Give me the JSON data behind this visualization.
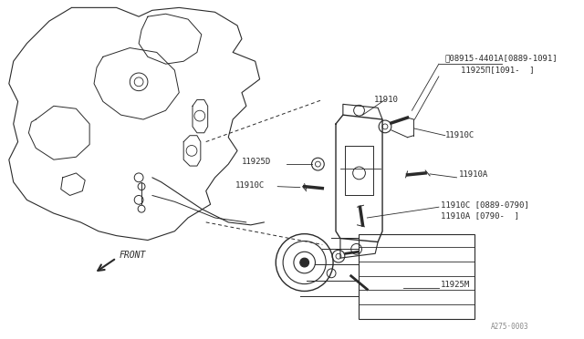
{
  "bg_color": "#ffffff",
  "line_color": "#2a2a2a",
  "text_color": "#2a2a2a",
  "gray_color": "#888888",
  "figure_number": "A275·0003",
  "label_W": "Ⓦ08915-4401A[0889-1091]",
  "label_11925I": "11925Π[1091-  ]",
  "label_11910": "11910",
  "label_11910C_r": "11910C",
  "label_11925D": "11925D",
  "label_11910C_l": "11910C",
  "label_11910A": "11910A",
  "label_11910C_lo": "11910C [0889-0790]",
  "label_11910A_lo": "11910A [0790-  ]",
  "label_11925M": "11925M",
  "label_FRONT": "FRONT"
}
